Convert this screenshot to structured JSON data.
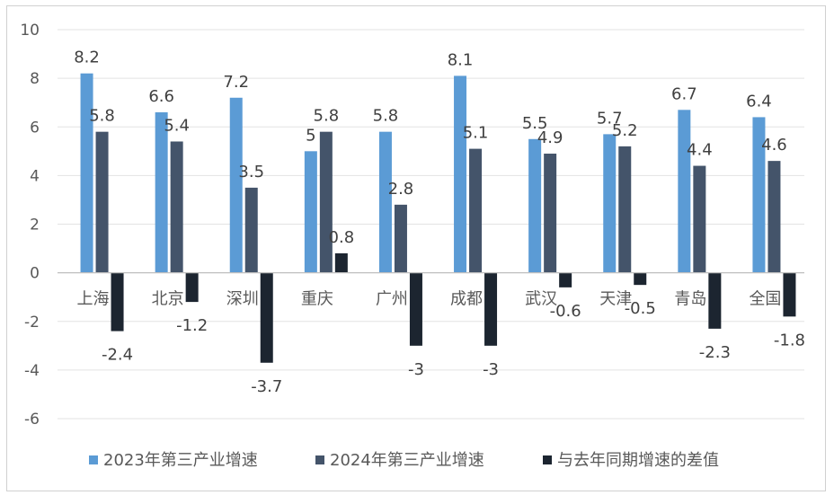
{
  "chart_data": {
    "type": "bar",
    "title": "",
    "xlabel": "",
    "ylabel": "",
    "ylim": [
      -6,
      10
    ],
    "yticks": [
      -6,
      -4,
      -2,
      0,
      2,
      4,
      6,
      8,
      10
    ],
    "grid": true,
    "legend_position": "bottom",
    "categories": [
      "上海",
      "北京",
      "深圳",
      "重庆",
      "广州",
      "成都",
      "武汉",
      "天津",
      "青岛",
      "全国"
    ],
    "series": [
      {
        "name": "2023年第三产业增速",
        "color": "#5b9bd5",
        "values": [
          8.2,
          6.6,
          7.2,
          5,
          5.8,
          8.1,
          5.5,
          5.7,
          6.7,
          6.4
        ],
        "labels": [
          "8.2",
          "6.6",
          "7.2",
          "5",
          "5.8",
          "8.1",
          "5.5",
          "5.7",
          "6.7",
          "6.4"
        ]
      },
      {
        "name": "2024年第三产业增速",
        "color": "#44546a",
        "values": [
          5.8,
          5.4,
          3.5,
          5.8,
          2.8,
          5.1,
          4.9,
          5.2,
          4.4,
          4.6
        ],
        "labels": [
          "5.8",
          "5.4",
          "3.5",
          "5.8",
          "2.8",
          "5.1",
          "4.9",
          "5.2",
          "4.4",
          "4.6"
        ]
      },
      {
        "name": "与去年同期增速的差值",
        "color": "#1c2530",
        "values": [
          -2.4,
          -1.2,
          -3.7,
          0.8,
          -3,
          -3,
          -0.6,
          -0.5,
          -2.3,
          -1.8
        ],
        "labels": [
          "-2.4",
          "-1.2",
          "-3.7",
          "0.8",
          "-3",
          "-3",
          "-0.6",
          "-0.5",
          "-2.3",
          "-1.8"
        ]
      }
    ]
  }
}
